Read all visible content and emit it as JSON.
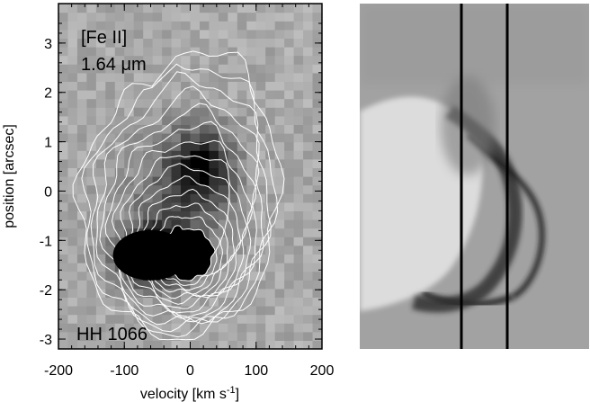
{
  "figure": {
    "left_panel": {
      "label_species": "[Fe II]",
      "label_wavelength_num": "1.64 ",
      "label_wavelength_unit": "μm",
      "label_object": "HH 1066"
    }
  },
  "chart_data": {
    "type": "heatmap",
    "title": "",
    "xlabel": "velocity [km s",
    "xlabel_sup": "-1",
    "xlabel_close": "]",
    "ylabel": "position [arcsec]",
    "xlim": [
      -200,
      200
    ],
    "ylim": [
      -3.2,
      3.8
    ],
    "xticks": [
      -200,
      -100,
      0,
      100,
      200
    ],
    "xtick_labels": [
      "-200",
      "-100",
      "0",
      "100",
      "200"
    ],
    "yticks": [
      -3,
      -2,
      -1,
      0,
      1,
      2,
      3
    ],
    "ytick_labels": [
      "-3",
      "-2",
      "-1",
      "0",
      "1",
      "2",
      "3"
    ],
    "colormap": "grayscale (black = high intensity)",
    "contours": {
      "color": "#ffffff",
      "levels": 14,
      "peak": {
        "velocity": -60,
        "position": -1.3
      },
      "secondary_peak": {
        "velocity": 20,
        "position": 0.5
      }
    }
  },
  "right_panel": {
    "type": "image",
    "description_color": "grayscale",
    "slit_lines": 2
  }
}
